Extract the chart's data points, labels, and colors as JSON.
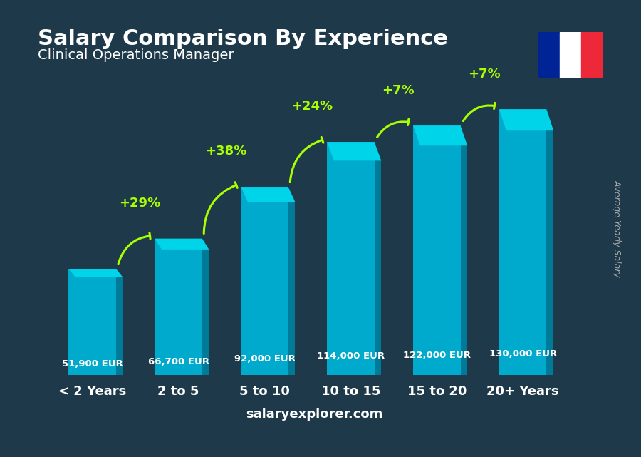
{
  "title": "Salary Comparison By Experience",
  "subtitle": "Clinical Operations Manager",
  "categories": [
    "< 2 Years",
    "2 to 5",
    "5 to 10",
    "10 to 15",
    "15 to 20",
    "20+ Years"
  ],
  "values": [
    51900,
    66700,
    92000,
    114000,
    122000,
    130000
  ],
  "salary_labels": [
    "51,900 EUR",
    "66,700 EUR",
    "92,000 EUR",
    "114,000 EUR",
    "122,000 EUR",
    "130,000 EUR"
  ],
  "pct_labels": [
    "+29%",
    "+38%",
    "+24%",
    "+7%",
    "+7%"
  ],
  "bar_color_top": "#00d4e8",
  "bar_color_mid": "#00aacc",
  "bar_color_side": "#007a99",
  "bar_color_bottom": "#005566",
  "background_color": "#1a3a4a",
  "title_color": "#ffffff",
  "subtitle_color": "#ffffff",
  "salary_label_color": "#cccccc",
  "pct_color": "#aaff00",
  "xlabel_color": "#ffffff",
  "watermark": "salaryexplorer.com",
  "right_label": "Average Yearly Salary",
  "ylim": [
    0,
    150000
  ],
  "bar_width": 0.55
}
